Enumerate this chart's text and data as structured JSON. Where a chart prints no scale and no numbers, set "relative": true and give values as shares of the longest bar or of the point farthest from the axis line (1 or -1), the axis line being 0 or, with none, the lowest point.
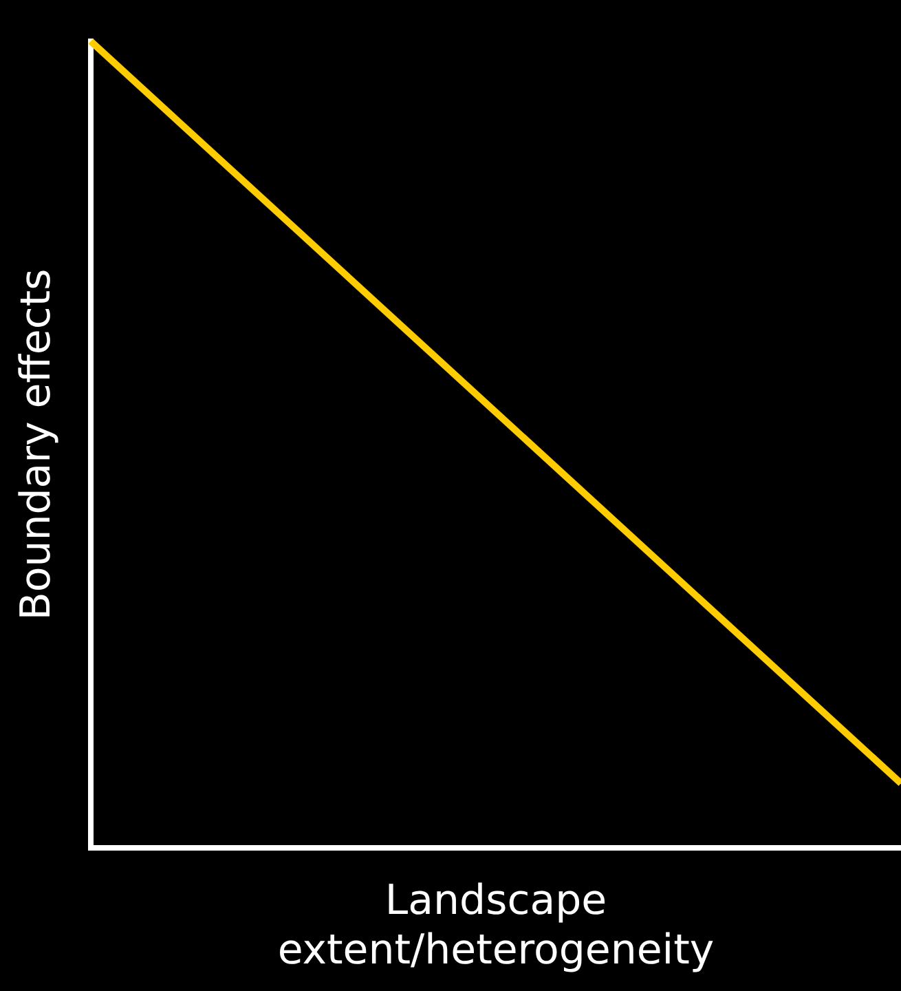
{
  "chart_data": {
    "type": "line",
    "relative": true,
    "xlabel": "Landscape extent/heterogeneity",
    "ylabel": "Boundary effects",
    "categories": [
      null,
      null
    ],
    "series": [
      {
        "color": "#ffcc00",
        "values": [
          1,
          0.08
        ]
      }
    ],
    "ref_lines": [
      {
        "axis": "y",
        "value": 0,
        "color": "#ffffff",
        "line_style": "solid"
      }
    ],
    "marker": "none",
    "legend": false,
    "tick_labels": false
  }
}
